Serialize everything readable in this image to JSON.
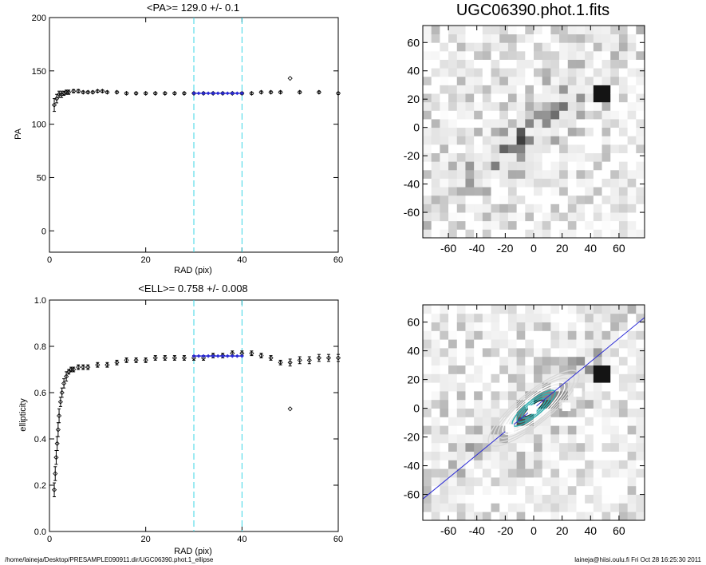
{
  "colors": {
    "axis": "#000000",
    "data": "#000000",
    "fit": "#2b2bd6",
    "limits": "#39d6e6",
    "image_dark": "#111111",
    "contour": "#d8d8d8",
    "inner_contour": "#2fb3b3"
  },
  "footer": {
    "path": "/home/laineja/Desktop/PRESAMPLE090911.dir/UGC06390.phot.1_ellipse",
    "user": "laineja@hiisi.oulu.fi  Fri Oct 28 16:25:30 2011"
  },
  "chart_data": [
    {
      "type": "scatter",
      "title": "<PA>= 129.0 +/-   0.1",
      "xlabel": "RAD (pix)",
      "ylabel": "PA",
      "xlim": [
        0,
        60
      ],
      "ylim": [
        -20,
        200
      ],
      "xticks": [
        0,
        20,
        40,
        60
      ],
      "yticks": [
        0,
        50,
        100,
        150,
        200
      ],
      "limit_lines_x": [
        30,
        40
      ],
      "fit": {
        "x": [
          30,
          40
        ],
        "y": 129.0,
        "error": 0.1
      },
      "outliers": [
        {
          "x": 50,
          "y": 143
        }
      ],
      "series": [
        {
          "x": [
            1,
            1.5,
            2,
            2.5,
            3,
            3.5,
            4,
            5,
            6,
            7,
            8,
            9,
            10,
            11,
            12,
            14,
            16,
            18,
            20,
            22,
            24,
            26,
            28,
            30,
            32,
            34,
            36,
            38,
            40,
            42,
            44,
            46,
            48,
            52,
            56,
            60
          ],
          "y": [
            118,
            124,
            128,
            128,
            129,
            130,
            130,
            131,
            131,
            130,
            130,
            130,
            131,
            131,
            130,
            130,
            129,
            129,
            129,
            129,
            129,
            129,
            129,
            129,
            129,
            129,
            129,
            129,
            129,
            129,
            130,
            130,
            130,
            130,
            130,
            129
          ],
          "err": [
            6,
            4,
            3,
            3,
            2,
            2,
            2,
            1.5,
            1.5,
            1,
            1,
            1,
            1,
            1,
            1,
            1,
            1,
            1,
            1,
            1,
            1,
            1,
            1,
            0.8,
            0.8,
            0.8,
            0.8,
            0.8,
            1,
            1,
            1,
            1,
            1,
            1,
            1,
            1
          ]
        }
      ]
    },
    {
      "type": "scatter",
      "title": "<ELL>= 0.758 +/-  0.008",
      "xlabel": "RAD (pix)",
      "ylabel": "ellipticity",
      "xlim": [
        0,
        60
      ],
      "ylim": [
        0.0,
        1.0
      ],
      "xticks": [
        0,
        20,
        40,
        60
      ],
      "yticks": [
        0.0,
        0.2,
        0.4,
        0.6,
        0.8,
        1.0
      ],
      "limit_lines_x": [
        30,
        40
      ],
      "fit": {
        "x": [
          30,
          40
        ],
        "y": 0.758,
        "error": 0.008
      },
      "outliers": [
        {
          "x": 50,
          "y": 0.53
        }
      ],
      "series": [
        {
          "x": [
            1,
            1.2,
            1.4,
            1.6,
            1.8,
            2,
            2.3,
            2.6,
            3,
            3.5,
            4,
            4.5,
            5,
            6,
            7,
            8,
            10,
            12,
            14,
            16,
            18,
            20,
            22,
            24,
            26,
            28,
            30,
            32,
            34,
            36,
            38,
            40,
            42,
            44,
            46,
            48,
            50,
            52,
            54,
            56,
            58,
            60
          ],
          "y": [
            0.18,
            0.25,
            0.32,
            0.38,
            0.44,
            0.5,
            0.56,
            0.6,
            0.64,
            0.67,
            0.69,
            0.7,
            0.7,
            0.71,
            0.71,
            0.71,
            0.72,
            0.72,
            0.73,
            0.74,
            0.74,
            0.74,
            0.75,
            0.75,
            0.75,
            0.75,
            0.75,
            0.75,
            0.76,
            0.76,
            0.77,
            0.77,
            0.77,
            0.76,
            0.75,
            0.73,
            0.73,
            0.74,
            0.74,
            0.75,
            0.75,
            0.75
          ],
          "err": [
            0.03,
            0.03,
            0.03,
            0.03,
            0.03,
            0.03,
            0.02,
            0.02,
            0.02,
            0.02,
            0.01,
            0.01,
            0.01,
            0.01,
            0.01,
            0.01,
            0.01,
            0.01,
            0.01,
            0.01,
            0.01,
            0.01,
            0.01,
            0.01,
            0.01,
            0.01,
            0.01,
            0.01,
            0.01,
            0.01,
            0.01,
            0.01,
            0.01,
            0.01,
            0.01,
            0.01,
            0.015,
            0.015,
            0.015,
            0.015,
            0.015,
            0.015
          ]
        }
      ]
    },
    {
      "type": "heatmap",
      "title": "UGC06390.phot.1.fits",
      "xlim": [
        -78,
        78
      ],
      "ylim": [
        -78,
        72
      ],
      "xticks": [
        -60,
        -40,
        -20,
        0,
        20,
        40,
        60
      ],
      "yticks": [
        -60,
        -40,
        -20,
        0,
        20,
        40,
        60
      ],
      "galaxy": {
        "pa_deg": 39,
        "major_axis": 75,
        "minor_axis": 16,
        "peak_xy": [
          46,
          26
        ]
      }
    },
    {
      "type": "heatmap",
      "title": "",
      "xlim": [
        -78,
        78
      ],
      "ylim": [
        -78,
        72
      ],
      "xticks": [
        -60,
        -40,
        -20,
        0,
        20,
        40,
        60
      ],
      "yticks": [
        -60,
        -40,
        -20,
        0,
        20,
        40,
        60
      ],
      "contours": {
        "count": 9,
        "pa_deg": 39,
        "ellipticity": 0.758,
        "max_radius": 40
      },
      "major_axis_line": {
        "angle_deg": 39
      }
    }
  ]
}
